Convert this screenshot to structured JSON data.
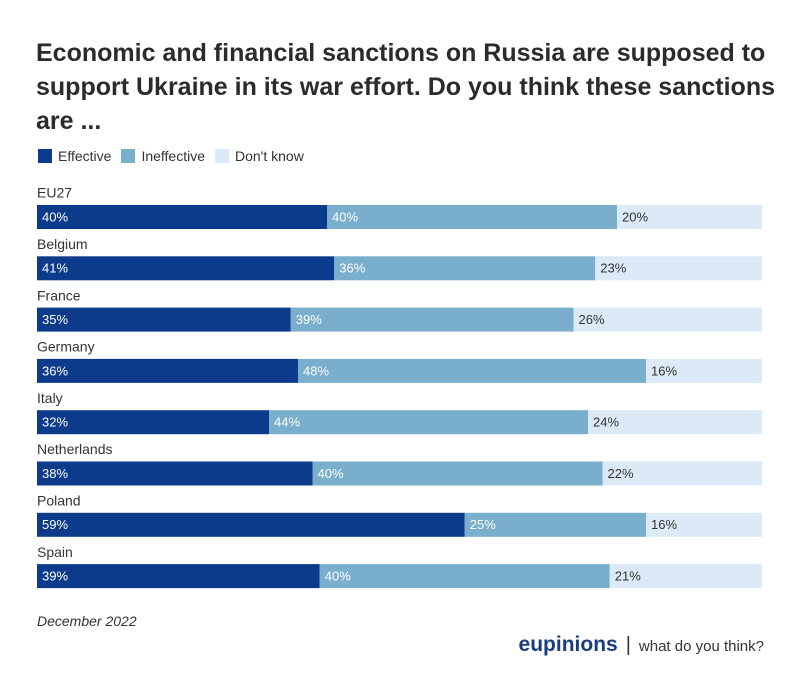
{
  "title": "Economic and financial sanctions on Russia are supposed to support Ukraine in its war effort. Do you think these sanctions are ...",
  "footer": {
    "date": "December 2022"
  },
  "brand": {
    "name": "eupinions",
    "separator": "|",
    "tagline": "what do you think?"
  },
  "colors": {
    "effective": "#0d3b8c",
    "ineffective": "#7aaecd",
    "dont_know": "#dbeaf6"
  },
  "chart_data": {
    "type": "bar",
    "orientation": "horizontal",
    "stacked": true,
    "stack_total": 100,
    "legend_placement": "top-left",
    "categories": [
      "EU27",
      "Belgium",
      "France",
      "Germany",
      "Italy",
      "Netherlands",
      "Poland",
      "Spain"
    ],
    "series": [
      {
        "name": "Effective",
        "color": "#0d3b8c",
        "values": [
          40,
          41,
          35,
          36,
          32,
          38,
          59,
          39
        ]
      },
      {
        "name": "Ineffective",
        "color": "#7aaecd",
        "values": [
          40,
          36,
          39,
          48,
          44,
          40,
          25,
          40
        ]
      },
      {
        "name": "Don't know",
        "color": "#dbeaf6",
        "values": [
          20,
          23,
          26,
          16,
          24,
          22,
          16,
          21
        ]
      }
    ],
    "value_suffix": "%"
  }
}
